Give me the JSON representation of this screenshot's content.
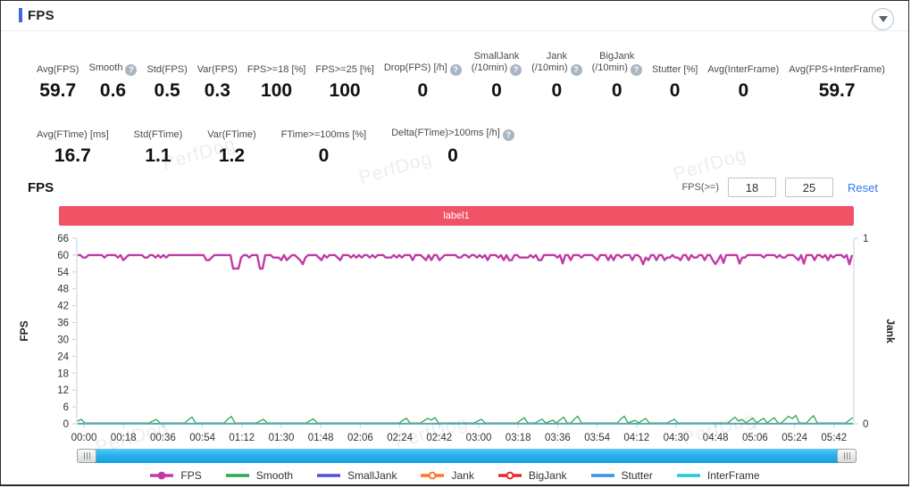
{
  "header": {
    "title": "FPS"
  },
  "collapse_button": {
    "icon": "triangle-down"
  },
  "watermark": {
    "text": "PerfDog"
  },
  "stats_row1": [
    {
      "label_lines": [
        "Avg(FPS)"
      ],
      "value": "59.7",
      "help": false
    },
    {
      "label_lines": [
        "Smooth"
      ],
      "value": "0.6",
      "help": true
    },
    {
      "label_lines": [
        "Std(FPS)"
      ],
      "value": "0.5",
      "help": false
    },
    {
      "label_lines": [
        "Var(FPS)"
      ],
      "value": "0.3",
      "help": false
    },
    {
      "label_lines": [
        "FPS>=18 [%]"
      ],
      "value": "100",
      "help": false
    },
    {
      "label_lines": [
        "FPS>=25 [%]"
      ],
      "value": "100",
      "help": false
    },
    {
      "label_lines": [
        "Drop(FPS) [/h]"
      ],
      "value": "0",
      "help": true
    },
    {
      "label_lines": [
        "SmallJank",
        "(/10min)"
      ],
      "value": "0",
      "help": true
    },
    {
      "label_lines": [
        "Jank",
        "(/10min)"
      ],
      "value": "0",
      "help": true
    },
    {
      "label_lines": [
        "BigJank",
        "(/10min)"
      ],
      "value": "0",
      "help": true
    },
    {
      "label_lines": [
        "Stutter [%]"
      ],
      "value": "0",
      "help": false
    },
    {
      "label_lines": [
        "Avg(InterFrame)"
      ],
      "value": "0",
      "help": false
    },
    {
      "label_lines": [
        "Avg(FPS+InterFrame)"
      ],
      "value": "59.7",
      "help": false
    }
  ],
  "stats_row2": [
    {
      "label_lines": [
        "Avg(FTime) [ms]"
      ],
      "value": "16.7",
      "help": false
    },
    {
      "label_lines": [
        "Std(FTime)"
      ],
      "value": "1.1",
      "help": false
    },
    {
      "label_lines": [
        "Var(FTime)"
      ],
      "value": "1.2",
      "help": false
    },
    {
      "label_lines": [
        "FTime>=100ms [%]"
      ],
      "value": "0",
      "help": false
    },
    {
      "label_lines": [
        "Delta(FTime)>100ms [/h]"
      ],
      "value": "0",
      "help": true
    }
  ],
  "section": {
    "title": "FPS",
    "filter_label": "FPS(>=)",
    "fps_min": "18",
    "fps_max": "25",
    "reset_label": "Reset"
  },
  "label_bar": {
    "text": "label1",
    "color": "#f05366"
  },
  "chart_data": {
    "type": "line",
    "title": "FPS",
    "x_ticks": [
      "00:00",
      "00:18",
      "00:36",
      "00:54",
      "01:12",
      "01:30",
      "01:48",
      "02:06",
      "02:24",
      "02:42",
      "03:00",
      "03:18",
      "03:36",
      "03:54",
      "04:12",
      "04:30",
      "04:48",
      "05:06",
      "05:24",
      "05:42"
    ],
    "x_tick_interval_sec": 18,
    "y_left": {
      "label": "FPS",
      "min": 0,
      "max": 66,
      "tick_step": 6
    },
    "y_right": {
      "label": "Jank",
      "min": 0,
      "max": 1,
      "ticks": [
        1,
        0
      ]
    },
    "grid": false,
    "legend_position": "bottom",
    "seed": 1337,
    "series": [
      {
        "name": "FPS",
        "color": "#c03ba5",
        "marker": "line-dot-filled",
        "pattern": "flat-with-dips",
        "baseline": 60,
        "dip_min": 55,
        "avg": 59.7,
        "description": "Holds ~60 FPS for the whole 5:54 run with frequent brief 1-2 FPS dips and rare dips to ~55"
      },
      {
        "name": "Smooth",
        "color": "#2fa84f",
        "marker": "line",
        "pattern": "spikes",
        "baseline": 0,
        "spike_max": 3,
        "description": "Sits at 0 with intermittent triangular spikes up to ~3; sparse before 02:00, denser after 02:24"
      },
      {
        "name": "SmallJank",
        "color": "#5050d8",
        "marker": "line",
        "pattern": "constant",
        "constant": 0
      },
      {
        "name": "Jank",
        "color": "#f9762b",
        "marker": "line-dot-open",
        "pattern": "constant",
        "constant": 0
      },
      {
        "name": "BigJank",
        "color": "#e8282d",
        "marker": "line-dot-open",
        "pattern": "constant",
        "constant": 0
      },
      {
        "name": "Stutter",
        "color": "#3d8de8",
        "marker": "line",
        "pattern": "constant",
        "constant": 0
      },
      {
        "name": "InterFrame",
        "color": "#1fc8e3",
        "marker": "line",
        "pattern": "constant",
        "constant": 0
      }
    ]
  },
  "colors": {
    "accent_blue": "#3e6ae0",
    "label_bar_red": "#f05366",
    "reset_link": "#2e7ceb",
    "axis_line": "#c8d2dd",
    "scrollbar_blue": "#29b2ec",
    "help_icon": "#a9b6c4"
  }
}
